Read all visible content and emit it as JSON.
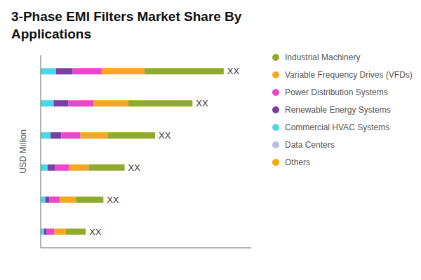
{
  "chart_data": {
    "type": "bar",
    "orientation": "horizontal",
    "stacked": true,
    "title": "3-Phase EMI Filters Market Share By\nApplications",
    "y_label": "USD Million",
    "categories": [
      null,
      null,
      null,
      null,
      null,
      null
    ],
    "series": [
      {
        "name": "Industrial Machinery",
        "color": "#8faa2c",
        "values": [
          5.2,
          4.2,
          3.1,
          2.35,
          1.8,
          1.3
        ]
      },
      {
        "name": "Variable Frequency Drives (VFDs)",
        "color": "#f5a623",
        "values": [
          2.8,
          2.3,
          1.8,
          1.3,
          1.05,
          0.75
        ]
      },
      {
        "name": "Power Distribution Systems",
        "color": "#e946c8",
        "values": [
          1.9,
          1.65,
          1.25,
          0.9,
          0.68,
          0.5
        ]
      },
      {
        "name": "Renewable Energy Systems",
        "color": "#7b3fa0",
        "values": [
          1.1,
          0.95,
          0.7,
          0.5,
          0.28,
          0.18
        ]
      },
      {
        "name": "Commercial HVAC Systems",
        "color": "#4dd8e8",
        "values": [
          1.0,
          0.85,
          0.65,
          0.45,
          0.3,
          0.22
        ]
      },
      {
        "name": "Data Centers",
        "color": "#b8c0e8",
        "values": [
          null,
          null,
          null,
          null,
          null,
          null
        ]
      },
      {
        "name": "Others",
        "color": "#f5a800",
        "values": [
          null,
          null,
          null,
          null,
          null,
          null
        ]
      }
    ],
    "annotations": [
      "XX",
      "XX",
      "XX",
      "XX",
      "XX",
      "XX"
    ],
    "xlim": [
      0,
      13.8
    ],
    "tick_labels": false,
    "grid": false
  }
}
